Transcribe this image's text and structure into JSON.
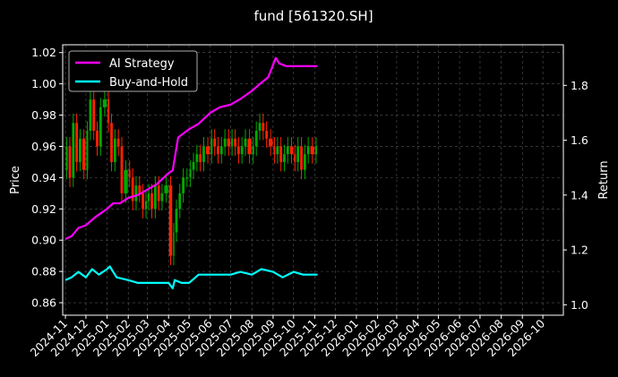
{
  "chart_data": {
    "type": "line",
    "title": "fund [561320.SH]",
    "ylabel_left": "Price",
    "ylabel_right": "Return",
    "xlabel": "",
    "grid": true,
    "legend_placement": "top-left",
    "xlim": [
      "2024-10-28",
      "2026-10-31"
    ],
    "ylim_left": [
      0.852,
      1.025
    ],
    "ylim_right": [
      0.962,
      1.948
    ],
    "y_ticks_left": [
      "0.86",
      "0.88",
      "0.90",
      "0.92",
      "0.94",
      "0.96",
      "0.98",
      "1.00",
      "1.02"
    ],
    "y_ticks_right": [
      "1.0",
      "1.2",
      "1.4",
      "1.6",
      "1.8"
    ],
    "x_ticks": [
      "2024-11",
      "2024-12",
      "2025-01",
      "2025-02",
      "2025-03",
      "2025-04",
      "2025-05",
      "2025-06",
      "2025-07",
      "2025-08",
      "2025-09",
      "2025-10",
      "2025-11",
      "2025-12",
      "2026-01",
      "2026-02",
      "2026-03",
      "2026-04",
      "2026-05",
      "2026-06",
      "2026-07",
      "2026-08",
      "2026-09",
      "2026-10"
    ],
    "colors": {
      "up": "#00aa00",
      "down": "#ff2200",
      "ai": "#ff00ff",
      "bh": "#00ffff",
      "background": "#000000",
      "grid": "#555555"
    },
    "series": [
      {
        "name": "AI Strategy",
        "axis": "right",
        "x": [
          "2024-11-01",
          "2024-11-10",
          "2024-11-20",
          "2024-12-01",
          "2024-12-15",
          "2025-01-01",
          "2025-01-10",
          "2025-01-20",
          "2025-02-01",
          "2025-02-15",
          "2025-03-01",
          "2025-03-15",
          "2025-04-01",
          "2025-04-07",
          "2025-04-15",
          "2025-05-01",
          "2025-05-15",
          "2025-06-01",
          "2025-06-15",
          "2025-07-01",
          "2025-07-15",
          "2025-08-01",
          "2025-08-15",
          "2025-08-25",
          "2025-09-05",
          "2025-09-10",
          "2025-09-20",
          "2025-10-01",
          "2025-10-15",
          "2025-11-05"
        ],
        "y": [
          1.24,
          1.25,
          1.28,
          1.29,
          1.32,
          1.35,
          1.37,
          1.37,
          1.39,
          1.4,
          1.42,
          1.44,
          1.48,
          1.49,
          1.61,
          1.64,
          1.66,
          1.7,
          1.72,
          1.73,
          1.75,
          1.78,
          1.81,
          1.83,
          1.9,
          1.88,
          1.87,
          1.87,
          1.87,
          1.87
        ]
      },
      {
        "name": "Buy-and-Hold",
        "axis": "right",
        "x": [
          "2024-11-01",
          "2024-11-10",
          "2024-11-20",
          "2024-12-01",
          "2024-12-10",
          "2024-12-20",
          "2025-01-01",
          "2025-01-05",
          "2025-01-15",
          "2025-02-01",
          "2025-02-15",
          "2025-03-01",
          "2025-03-15",
          "2025-04-01",
          "2025-04-07",
          "2025-04-10",
          "2025-04-20",
          "2025-05-01",
          "2025-05-15",
          "2025-06-01",
          "2025-06-15",
          "2025-07-01",
          "2025-07-15",
          "2025-08-01",
          "2025-08-15",
          "2025-09-01",
          "2025-09-15",
          "2025-10-01",
          "2025-10-15",
          "2025-11-05"
        ],
        "y": [
          1.09,
          1.1,
          1.12,
          1.1,
          1.13,
          1.11,
          1.13,
          1.14,
          1.1,
          1.09,
          1.08,
          1.08,
          1.08,
          1.08,
          1.06,
          1.09,
          1.08,
          1.08,
          1.11,
          1.11,
          1.11,
          1.11,
          1.12,
          1.11,
          1.13,
          1.12,
          1.1,
          1.12,
          1.11,
          1.11
        ]
      }
    ],
    "price": {
      "name": "Price",
      "axis": "left",
      "x": [
        "2024-11-01",
        "2024-11-05",
        "2024-11-10",
        "2024-11-15",
        "2024-11-20",
        "2024-11-25",
        "2024-12-01",
        "2024-12-05",
        "2024-12-10",
        "2024-12-15",
        "2024-12-20",
        "2024-12-25",
        "2025-01-01",
        "2025-01-05",
        "2025-01-10",
        "2025-01-15",
        "2025-01-20",
        "2025-01-25",
        "2025-02-01",
        "2025-02-05",
        "2025-02-10",
        "2025-02-15",
        "2025-02-20",
        "2025-02-25",
        "2025-03-01",
        "2025-03-05",
        "2025-03-10",
        "2025-03-15",
        "2025-03-20",
        "2025-03-25",
        "2025-04-01",
        "2025-04-07",
        "2025-04-10",
        "2025-04-15",
        "2025-04-20",
        "2025-04-25",
        "2025-05-01",
        "2025-05-05",
        "2025-05-10",
        "2025-05-15",
        "2025-05-20",
        "2025-05-25",
        "2025-06-01",
        "2025-06-05",
        "2025-06-10",
        "2025-06-15",
        "2025-06-20",
        "2025-06-25",
        "2025-07-01",
        "2025-07-05",
        "2025-07-10",
        "2025-07-15",
        "2025-07-20",
        "2025-07-25",
        "2025-08-01",
        "2025-08-05",
        "2025-08-10",
        "2025-08-15",
        "2025-08-20",
        "2025-08-25",
        "2025-09-01",
        "2025-09-05",
        "2025-09-10",
        "2025-09-15",
        "2025-09-20",
        "2025-09-25",
        "2025-10-01",
        "2025-10-05",
        "2025-10-10",
        "2025-10-15",
        "2025-10-20",
        "2025-10-25",
        "2025-11-01",
        "2025-11-05"
      ],
      "y": [
        0.945,
        0.96,
        0.94,
        0.975,
        0.95,
        0.965,
        0.945,
        0.97,
        0.99,
        0.97,
        0.96,
        0.985,
        0.99,
        0.975,
        0.95,
        0.965,
        0.96,
        0.93,
        0.945,
        0.94,
        0.925,
        0.935,
        0.93,
        0.92,
        0.925,
        0.93,
        0.92,
        0.935,
        0.925,
        0.93,
        0.935,
        0.89,
        0.905,
        0.92,
        0.93,
        0.94,
        0.94,
        0.945,
        0.95,
        0.955,
        0.95,
        0.96,
        0.955,
        0.965,
        0.96,
        0.955,
        0.96,
        0.965,
        0.96,
        0.965,
        0.96,
        0.955,
        0.96,
        0.965,
        0.955,
        0.96,
        0.97,
        0.975,
        0.97,
        0.965,
        0.96,
        0.955,
        0.96,
        0.95,
        0.955,
        0.96,
        0.955,
        0.95,
        0.96,
        0.945,
        0.955,
        0.96,
        0.955,
        0.96
      ]
    }
  }
}
